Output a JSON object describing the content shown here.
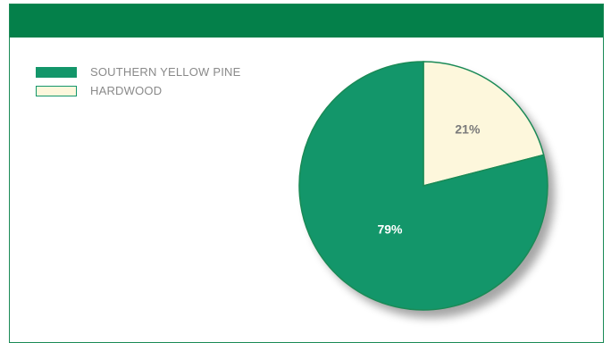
{
  "colors": {
    "header": "#04804a",
    "border": "#1a8a56",
    "southern_yellow_pine": "#13966a",
    "hardwood": "#fdf7dc",
    "pct_dark": "#7a7a7a",
    "pct_light": "#ffffff"
  },
  "chart_data": {
    "type": "pie",
    "title": "",
    "categories": [
      "SOUTHERN YELLOW PINE",
      "HARDWOOD"
    ],
    "values": [
      79,
      21
    ],
    "labels": [
      "79%",
      "21%"
    ],
    "legend_position": "top-left"
  }
}
